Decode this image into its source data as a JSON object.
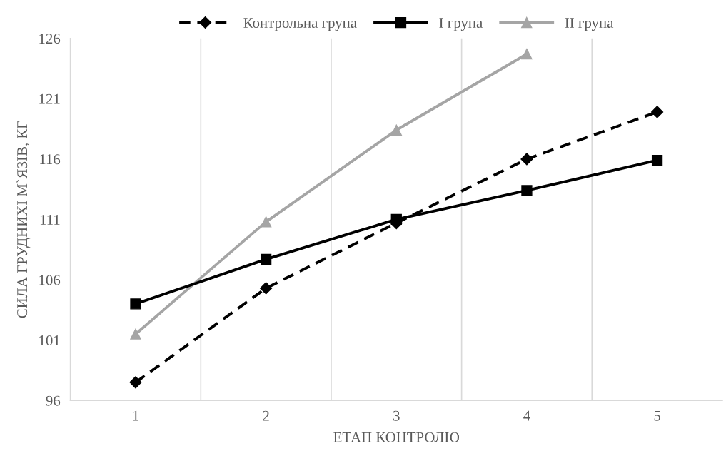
{
  "chart_data": {
    "type": "line",
    "xlabel": "ЕТАП КОНТРОЛЮ",
    "ylabel": "СИЛА ГРУДНИХІ М`ЯЗІВ, КГ",
    "categories": [
      "1",
      "2",
      "3",
      "4",
      "5"
    ],
    "series": [
      {
        "name": "Контрольна група",
        "color": "#000000",
        "marker": "diamond",
        "line_style": "dashed",
        "values": [
          97.5,
          105.3,
          110.7,
          116.0,
          119.9
        ]
      },
      {
        "name": "I група",
        "color": "#000000",
        "marker": "square",
        "line_style": "solid",
        "values": [
          104.0,
          107.7,
          111.0,
          113.4,
          115.9
        ]
      },
      {
        "name": "II група",
        "color": "#a5a5a5",
        "marker": "triangle",
        "line_style": "solid",
        "values": [
          101.5,
          110.8,
          118.4,
          124.7,
          null
        ]
      }
    ],
    "ylim": [
      96,
      126
    ],
    "yticks": [
      96,
      101,
      106,
      111,
      116,
      121,
      126
    ],
    "grid": "x",
    "legend": "top"
  }
}
